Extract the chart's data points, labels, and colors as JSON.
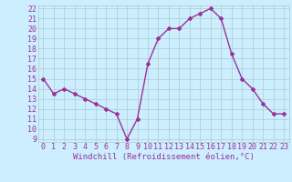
{
  "x": [
    0,
    1,
    2,
    3,
    4,
    5,
    6,
    7,
    8,
    9,
    10,
    11,
    12,
    13,
    14,
    15,
    16,
    17,
    18,
    19,
    20,
    21,
    22,
    23
  ],
  "y": [
    15,
    13.5,
    14,
    13.5,
    13,
    12.5,
    12,
    11.5,
    9,
    11,
    16.5,
    19,
    20,
    20,
    21,
    21.5,
    22,
    21,
    17.5,
    15,
    14,
    12.5,
    11.5,
    11.5
  ],
  "ylim_min": 8.7,
  "ylim_max": 22.3,
  "xlim_min": -0.5,
  "xlim_max": 23.5,
  "yticks": [
    9,
    10,
    11,
    12,
    13,
    14,
    15,
    16,
    17,
    18,
    19,
    20,
    21,
    22
  ],
  "xticks": [
    0,
    1,
    2,
    3,
    4,
    5,
    6,
    7,
    8,
    9,
    10,
    11,
    12,
    13,
    14,
    15,
    16,
    17,
    18,
    19,
    20,
    21,
    22,
    23
  ],
  "xlabel": "Windchill (Refroidissement éolien,°C)",
  "line_color": "#993399",
  "marker": "D",
  "marker_size": 2,
  "background_color": "#cceeff",
  "grid_color": "#aacccc",
  "tick_label_color": "#993399",
  "xlabel_color": "#993399",
  "xlabel_fontsize": 6.5,
  "tick_fontsize": 6,
  "linewidth": 1.0
}
